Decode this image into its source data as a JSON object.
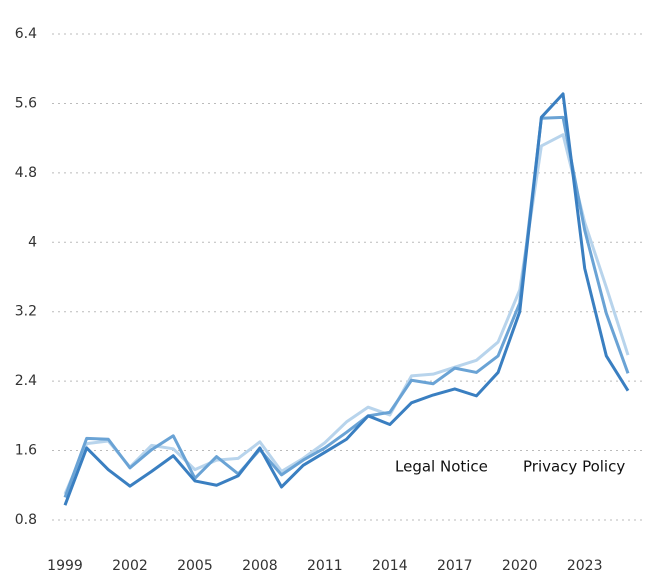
{
  "chart_data": {
    "type": "line",
    "x": [
      1999,
      2000,
      2001,
      2002,
      2003,
      2004,
      2005,
      2006,
      2007,
      2008,
      2009,
      2010,
      2011,
      2012,
      2013,
      2014,
      2015,
      2016,
      2017,
      2018,
      2019,
      2020,
      2021,
      2022,
      2023,
      2024,
      2025
    ],
    "series": [
      {
        "color": "#b8d4ec",
        "values": [
          1.1,
          1.68,
          1.71,
          1.41,
          1.66,
          1.62,
          1.38,
          1.49,
          1.51,
          1.7,
          1.36,
          1.51,
          1.69,
          1.93,
          2.1,
          2.01,
          2.46,
          2.48,
          2.56,
          2.64,
          2.85,
          3.45,
          5.11,
          5.24,
          4.23,
          3.48,
          2.7
        ]
      },
      {
        "color": "#6aa3d5",
        "values": [
          1.06,
          1.74,
          1.73,
          1.4,
          1.61,
          1.77,
          1.28,
          1.53,
          1.33,
          1.61,
          1.32,
          1.49,
          1.63,
          1.81,
          2.0,
          2.04,
          2.41,
          2.37,
          2.55,
          2.5,
          2.69,
          3.3,
          5.43,
          5.44,
          4.14,
          3.18,
          2.49
        ]
      },
      {
        "color": "#3a7fc1",
        "values": [
          0.97,
          1.63,
          1.38,
          1.19,
          1.36,
          1.54,
          1.25,
          1.2,
          1.31,
          1.63,
          1.18,
          1.43,
          1.58,
          1.73,
          2.0,
          1.9,
          2.15,
          2.24,
          2.31,
          2.23,
          2.5,
          3.2,
          5.44,
          5.71,
          3.7,
          2.69,
          2.29
        ]
      }
    ],
    "xlim": [
      1999,
      2025
    ],
    "xticks": [
      1999,
      2002,
      2005,
      2008,
      2011,
      2014,
      2017,
      2020,
      2023
    ],
    "ylim": [
      0.5,
      6.55
    ],
    "yticks": [
      0.8,
      1.6,
      2.4,
      3.2,
      4,
      4.8,
      5.6,
      6.4
    ],
    "grid": true
  },
  "links": [
    "Legal Notice",
    "Privacy Policy"
  ]
}
